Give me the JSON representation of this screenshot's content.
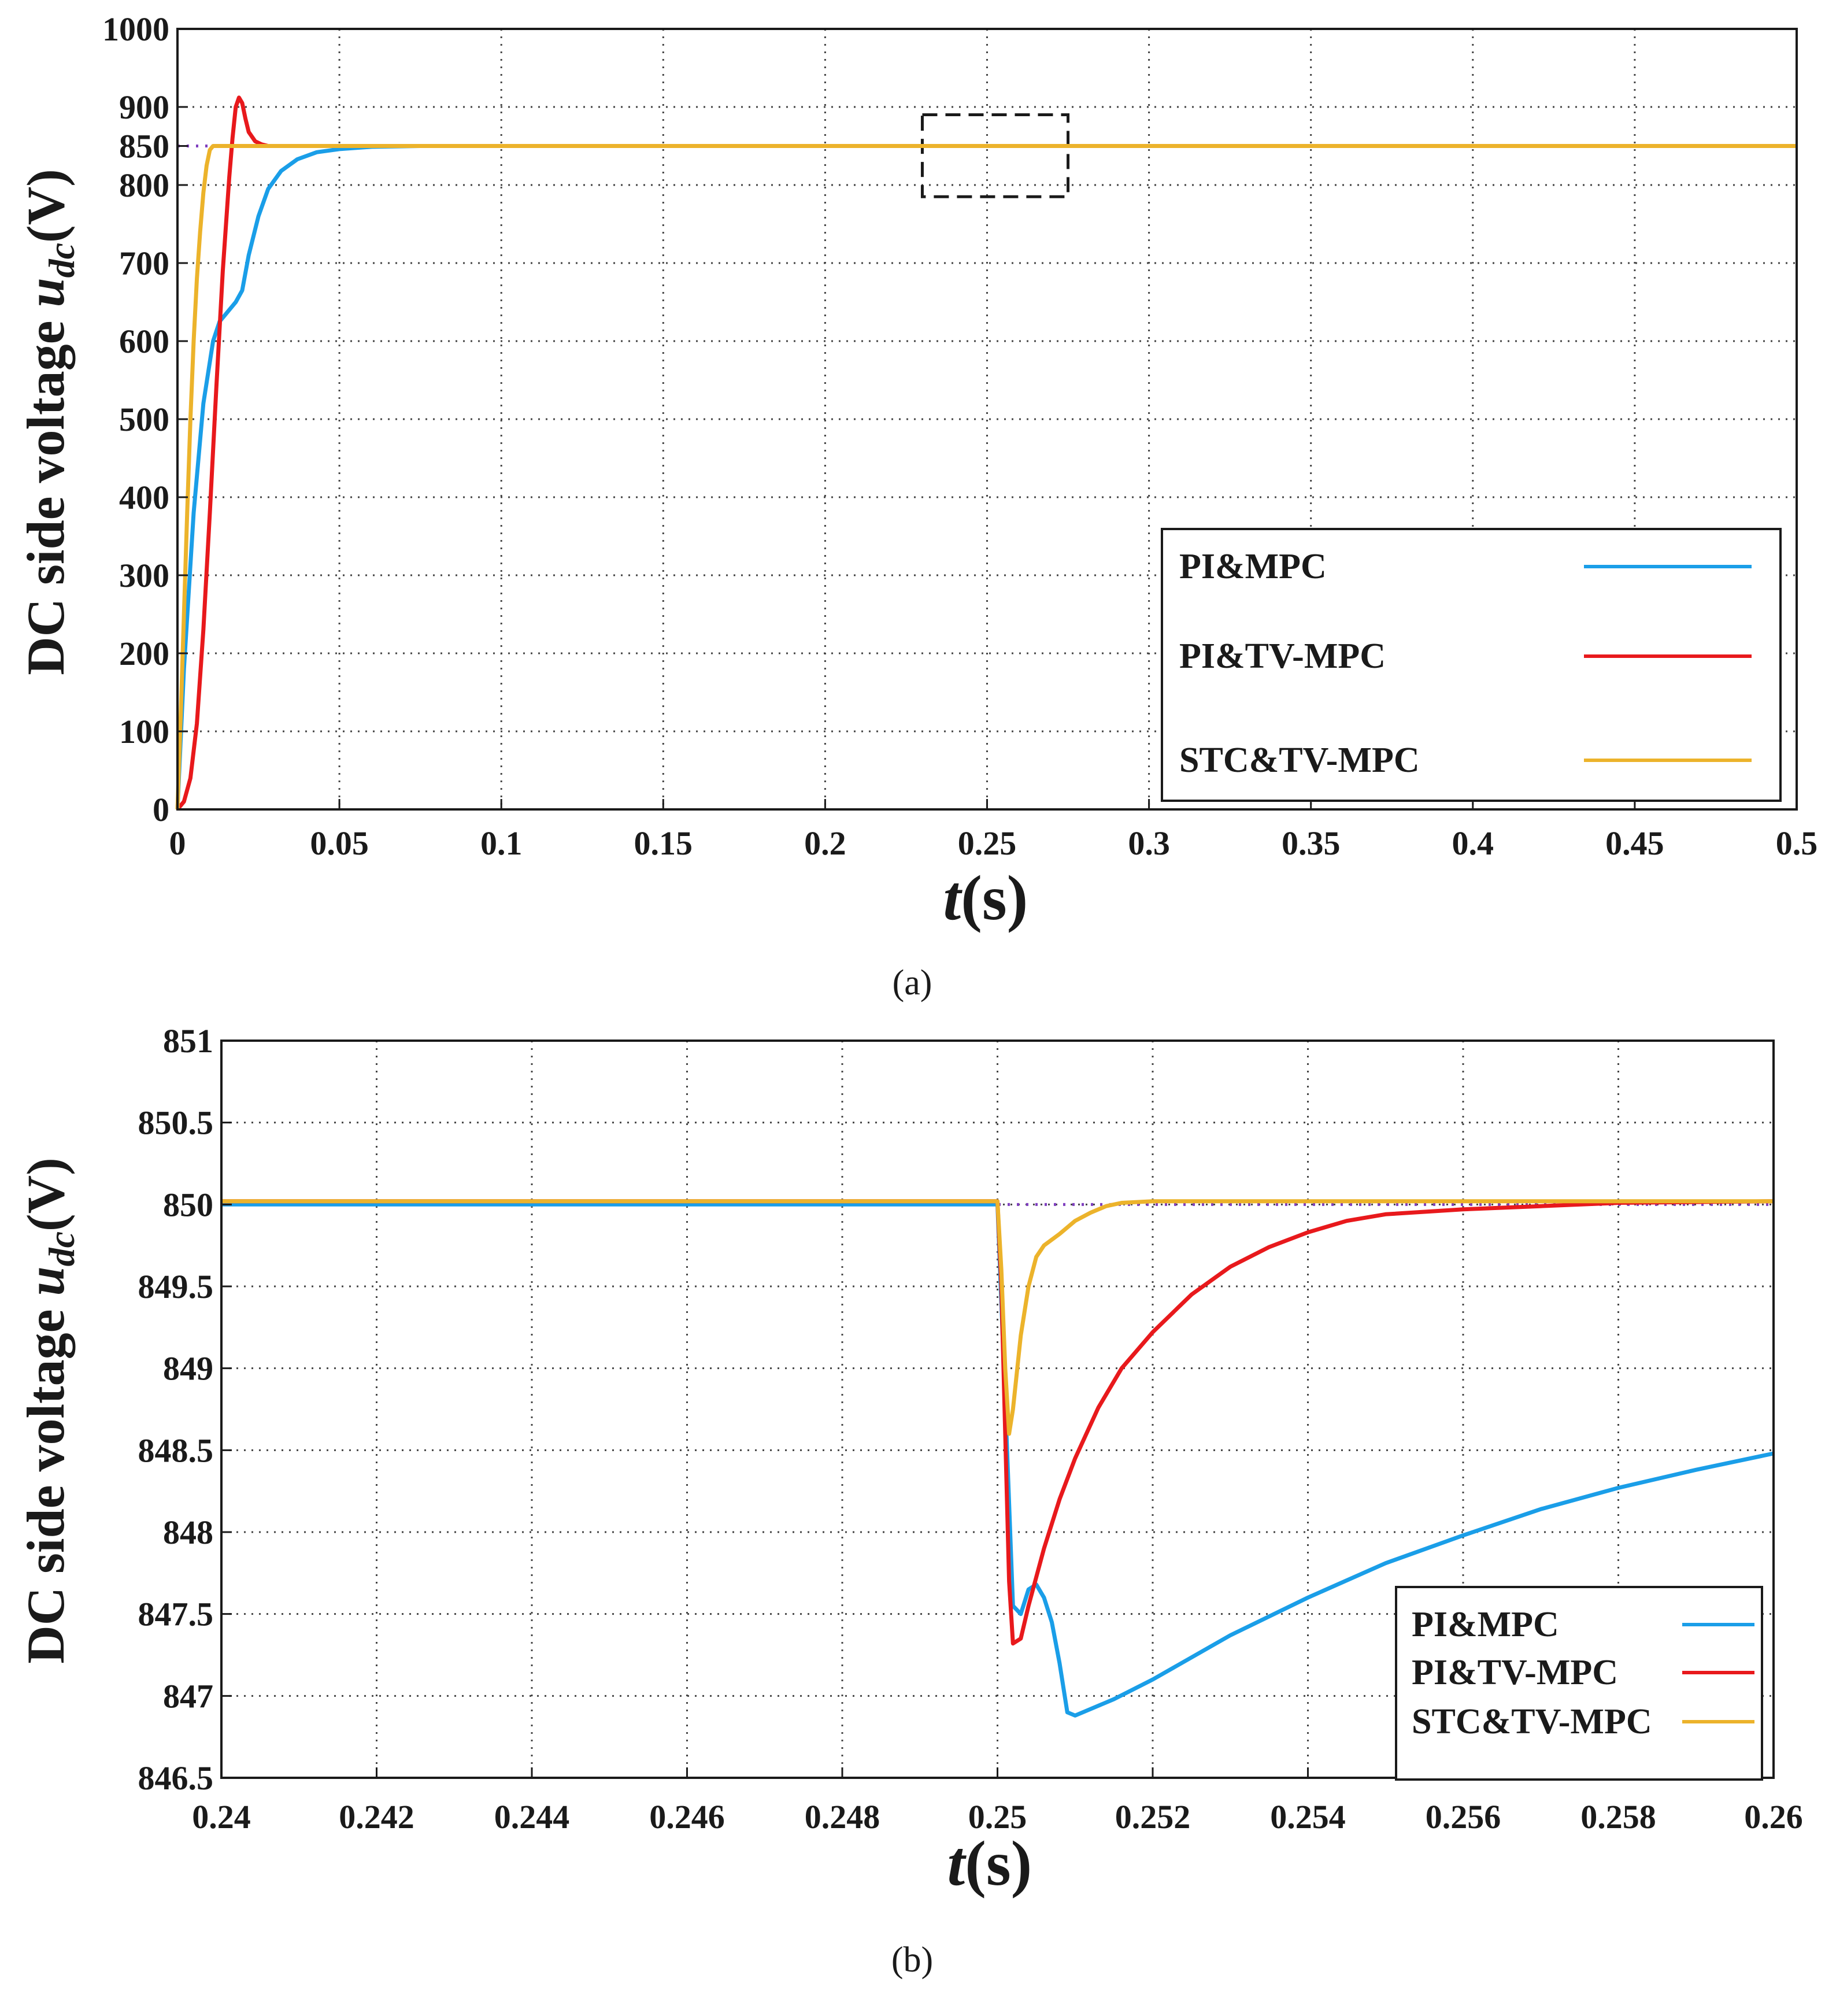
{
  "colors": {
    "pi_mpc": "#1a9ee8",
    "pi_tv_mpc": "#e8191c",
    "stc_tv_mpc": "#ecb32b",
    "reference": "#7f3fbf",
    "grid": "#444444",
    "axis": "#1a1a1a"
  },
  "chart_data": [
    {
      "id": "a",
      "type": "line",
      "caption": "(a)",
      "ylabel": {
        "prefix": "DC side voltage ",
        "var": "u",
        "sub": "dc",
        "suffix": "(V)"
      },
      "xlabel": {
        "var": "t",
        "suffix": "(s)"
      },
      "xlim": [
        0,
        0.5
      ],
      "ylim": [
        0,
        1000
      ],
      "grid": true,
      "legend_position": "bottom-right",
      "xticks": [
        0,
        0.05,
        0.1,
        0.15,
        0.2,
        0.25,
        0.3,
        0.35,
        0.4,
        0.45,
        0.5
      ],
      "xtick_labels": [
        "0",
        "0.05",
        "0.1",
        "0.15",
        "0.2",
        "0.25",
        "0.3",
        "0.35",
        "0.4",
        "0.45",
        "0.5"
      ],
      "yticks": [
        0,
        100,
        200,
        300,
        400,
        500,
        600,
        700,
        800,
        850,
        900,
        1000
      ],
      "ytick_labels": [
        "0",
        "100",
        "200",
        "300",
        "400",
        "500",
        "600",
        "700",
        "800",
        "850",
        "900",
        "1000"
      ],
      "grid_y": [
        0,
        100,
        200,
        300,
        400,
        500,
        600,
        700,
        800,
        900,
        1000
      ],
      "reference": {
        "name": "reference",
        "value": 850
      },
      "annotation": {
        "type": "dashed-box",
        "x_range": [
          0.23,
          0.275
        ],
        "y_range": [
          785,
          890
        ]
      },
      "series": [
        {
          "name": "PI&MPC",
          "key": "pi_mpc",
          "x": [
            0,
            0.002,
            0.005,
            0.008,
            0.011,
            0.013,
            0.016,
            0.018,
            0.02,
            0.022,
            0.025,
            0.028,
            0.032,
            0.037,
            0.043,
            0.05,
            0.06,
            0.075,
            0.09,
            0.5
          ],
          "values": [
            0,
            180,
            380,
            520,
            600,
            625,
            640,
            650,
            665,
            710,
            760,
            795,
            818,
            833,
            842,
            846,
            849,
            850,
            850,
            850
          ]
        },
        {
          "name": "PI&TV-MPC",
          "key": "pi_tv_mpc",
          "x": [
            0,
            0.002,
            0.004,
            0.006,
            0.008,
            0.01,
            0.012,
            0.014,
            0.016,
            0.017,
            0.018,
            0.019,
            0.02,
            0.021,
            0.022,
            0.024,
            0.026,
            0.028,
            0.032,
            0.5
          ],
          "values": [
            0,
            10,
            40,
            110,
            230,
            380,
            540,
            690,
            810,
            860,
            900,
            912,
            905,
            885,
            868,
            856,
            852,
            850,
            850,
            850
          ]
        },
        {
          "name": "STC&TV-MPC",
          "key": "stc_tv_mpc",
          "x": [
            0,
            0.001,
            0.002,
            0.003,
            0.004,
            0.005,
            0.006,
            0.007,
            0.008,
            0.009,
            0.01,
            0.011,
            0.5
          ],
          "values": [
            0,
            120,
            250,
            380,
            500,
            600,
            680,
            740,
            790,
            825,
            845,
            850,
            850
          ]
        }
      ]
    },
    {
      "id": "b",
      "type": "line",
      "caption": "(b)",
      "ylabel": {
        "prefix": "DC side voltage ",
        "var": "u",
        "sub": "dc",
        "suffix": "(V)"
      },
      "xlabel": {
        "var": "t",
        "suffix": "(s)"
      },
      "xlim": [
        0.24,
        0.26
      ],
      "ylim": [
        846.5,
        851
      ],
      "grid": true,
      "legend_position": "bottom-right",
      "xticks": [
        0.24,
        0.242,
        0.244,
        0.246,
        0.248,
        0.25,
        0.252,
        0.254,
        0.256,
        0.258,
        0.26
      ],
      "xtick_labels": [
        "0.24",
        "0.242",
        "0.244",
        "0.246",
        "0.248",
        "0.25",
        "0.252",
        "0.254",
        "0.256",
        "0.258",
        "0.26"
      ],
      "yticks": [
        846.5,
        847,
        847.5,
        848,
        848.5,
        849,
        849.5,
        850,
        850.5,
        851
      ],
      "ytick_labels": [
        "846.5",
        "847",
        "847.5",
        "848",
        "848.5",
        "849",
        "849.5",
        "850",
        "850.5",
        "851"
      ],
      "grid_y": [
        846.5,
        847,
        847.5,
        848,
        848.5,
        849,
        849.5,
        850,
        850.5,
        851
      ],
      "reference": {
        "name": "reference",
        "value": 850
      },
      "series": [
        {
          "name": "PI&MPC",
          "key": "pi_mpc",
          "x": [
            0.24,
            0.25,
            0.2501,
            0.2502,
            0.2503,
            0.2504,
            0.2505,
            0.2506,
            0.2507,
            0.2508,
            0.2509,
            0.251,
            0.2515,
            0.252,
            0.253,
            0.254,
            0.255,
            0.256,
            0.257,
            0.258,
            0.259,
            0.26
          ],
          "values": [
            850,
            850,
            848.8,
            847.55,
            847.5,
            847.65,
            847.68,
            847.6,
            847.45,
            847.2,
            846.9,
            846.88,
            846.98,
            847.1,
            847.37,
            847.6,
            847.81,
            847.98,
            848.14,
            848.27,
            848.38,
            848.48
          ]
        },
        {
          "name": "PI&TV-MPC",
          "key": "pi_tv_mpc",
          "x": [
            0.24,
            0.25,
            0.25005,
            0.2501,
            0.25015,
            0.2502,
            0.2503,
            0.2504,
            0.2506,
            0.2508,
            0.251,
            0.2513,
            0.2516,
            0.252,
            0.2525,
            0.253,
            0.2535,
            0.254,
            0.2545,
            0.255,
            0.256,
            0.257,
            0.258,
            0.26
          ],
          "values": [
            850.02,
            850.02,
            849.5,
            848.6,
            847.7,
            847.32,
            847.35,
            847.55,
            847.9,
            848.2,
            848.45,
            848.76,
            849.0,
            849.22,
            849.45,
            849.62,
            849.74,
            849.83,
            849.9,
            849.94,
            849.97,
            849.99,
            850.01,
            850.02
          ]
        },
        {
          "name": "STC&TV-MPC",
          "key": "stc_tv_mpc",
          "x": [
            0.24,
            0.25,
            0.25005,
            0.2501,
            0.25015,
            0.2502,
            0.2503,
            0.2504,
            0.2505,
            0.2506,
            0.2508,
            0.251,
            0.2512,
            0.2514,
            0.2516,
            0.252,
            0.26
          ],
          "values": [
            850.02,
            850.02,
            849.6,
            849.0,
            848.6,
            848.75,
            849.2,
            849.5,
            849.68,
            849.75,
            849.82,
            849.9,
            849.95,
            849.99,
            850.01,
            850.02,
            850.02
          ]
        }
      ]
    }
  ]
}
